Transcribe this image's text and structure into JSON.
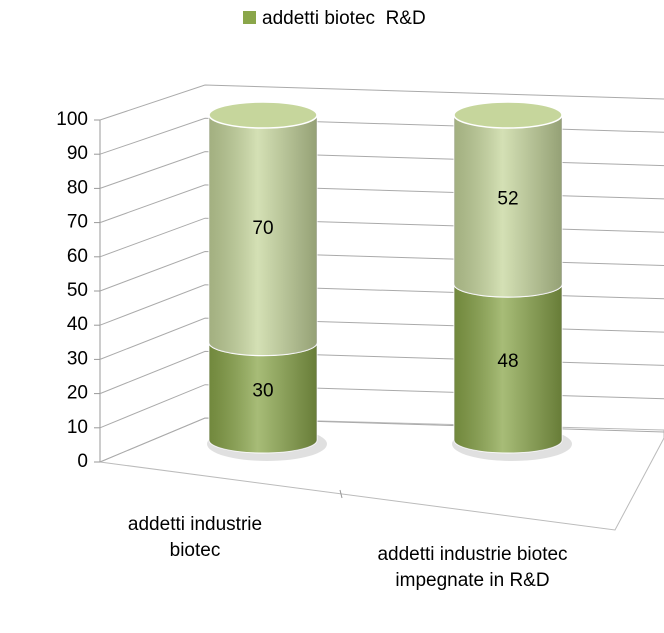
{
  "chart_data": {
    "type": "bar3d-stacked-cylinder",
    "categories": [
      "addetti industrie biotec",
      "addetti industrie biotec impegnate in R&D"
    ],
    "series": [
      {
        "name": "addetti biotec  R&D",
        "color": "#8aa64a",
        "values": [
          30,
          48
        ]
      },
      {
        "color": "#c6d69c",
        "values": [
          70,
          52
        ]
      }
    ],
    "ylim": [
      0,
      100
    ],
    "yticks": [
      0,
      10,
      20,
      30,
      40,
      50,
      60,
      70,
      80,
      90,
      100
    ],
    "grid": true,
    "legend": "top"
  }
}
